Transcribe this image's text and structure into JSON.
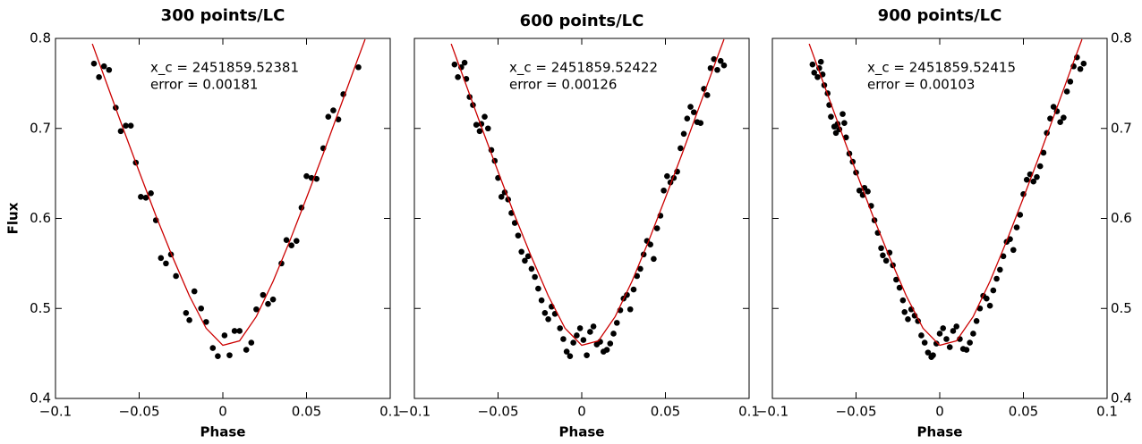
{
  "chart_data": [
    {
      "type": "scatter",
      "title": "300 points/LC",
      "x_label": "Phase",
      "y_label": "Flux",
      "annotations": [
        "x_c = 2451859.52381",
        "error = 0.00181"
      ],
      "xlim": [
        -0.1,
        0.1
      ],
      "ylim": [
        0.4,
        0.8
      ],
      "xticks": [
        {
          "value": -0.1,
          "label": "−0.1"
        },
        {
          "value": -0.05,
          "label": "−0.05"
        },
        0,
        0.05,
        0.1
      ],
      "yticks": [
        0.4,
        0.5,
        0.6,
        0.7,
        0.8
      ],
      "ytick_side": "left",
      "series": [
        {
          "type": "scatter",
          "color": "#000000",
          "x": [
            -0.077,
            -0.074,
            -0.071,
            -0.068,
            -0.064,
            -0.061,
            -0.058,
            -0.055,
            -0.052,
            -0.049,
            -0.046,
            -0.043,
            -0.04,
            -0.037,
            -0.034,
            -0.031,
            -0.028,
            -0.022,
            -0.02,
            -0.017,
            -0.013,
            -0.01,
            -0.006,
            -0.003,
            0.001,
            0.004,
            0.007,
            0.01,
            0.014,
            0.017,
            0.02,
            0.024,
            0.027,
            0.03,
            0.035,
            0.038,
            0.041,
            0.044,
            0.047,
            0.05,
            0.053,
            0.056,
            0.06,
            0.063,
            0.066,
            0.069,
            0.072,
            0.081
          ],
          "values": [
            0.772,
            0.757,
            0.769,
            0.765,
            0.723,
            0.697,
            0.703,
            0.703,
            0.662,
            0.624,
            0.623,
            0.628,
            0.598,
            0.556,
            0.55,
            0.56,
            0.536,
            0.495,
            0.487,
            0.519,
            0.5,
            0.485,
            0.456,
            0.447,
            0.47,
            0.448,
            0.475,
            0.475,
            0.454,
            0.462,
            0.499,
            0.515,
            0.505,
            0.51,
            0.55,
            0.576,
            0.57,
            0.575,
            0.612,
            0.647,
            0.645,
            0.644,
            0.678,
            0.713,
            0.72,
            0.71,
            0.738,
            0.768
          ]
        },
        {
          "type": "line",
          "color": "#cc0000",
          "x": [
            -0.078,
            -0.07,
            -0.06,
            -0.05,
            -0.04,
            -0.03,
            -0.02,
            -0.01,
            0,
            0.01,
            0.02,
            0.03,
            0.04,
            0.05,
            0.06,
            0.07,
            0.08,
            0.085
          ],
          "values": [
            0.794,
            0.753,
            0.702,
            0.652,
            0.603,
            0.557,
            0.514,
            0.478,
            0.459,
            0.464,
            0.491,
            0.53,
            0.575,
            0.623,
            0.672,
            0.723,
            0.774,
            0.799
          ]
        }
      ]
    },
    {
      "type": "scatter",
      "title": "600 points/LC",
      "x_label": "Phase",
      "annotations": [
        "x_c = 2451859.52422",
        "error = 0.00126"
      ],
      "xlim": [
        -0.1,
        0.1
      ],
      "ylim": [
        0.4,
        0.8
      ],
      "xticks": [
        {
          "value": -0.1,
          "label": "−0.1"
        },
        {
          "value": -0.05,
          "label": "−0.05"
        },
        0,
        0.05,
        0.1
      ],
      "yticks": [
        0.4,
        0.5,
        0.6,
        0.7,
        0.8
      ],
      "ytick_side": "none",
      "series": [
        {
          "type": "scatter",
          "color": "#000000",
          "x": [
            -0.076,
            -0.074,
            -0.072,
            -0.07,
            -0.069,
            -0.067,
            -0.065,
            -0.063,
            -0.061,
            -0.06,
            -0.058,
            -0.056,
            -0.054,
            -0.052,
            -0.05,
            -0.048,
            -0.046,
            -0.044,
            -0.042,
            -0.04,
            -0.038,
            -0.036,
            -0.034,
            -0.032,
            -0.03,
            -0.028,
            -0.026,
            -0.024,
            -0.022,
            -0.02,
            -0.018,
            -0.016,
            -0.013,
            -0.011,
            -0.009,
            -0.007,
            -0.005,
            -0.003,
            -0.001,
            0.001,
            0.003,
            0.005,
            0.007,
            0.009,
            0.011,
            0.013,
            0.015,
            0.017,
            0.019,
            0.021,
            0.023,
            0.025,
            0.027,
            0.029,
            0.031,
            0.033,
            0.035,
            0.037,
            0.039,
            0.041,
            0.043,
            0.045,
            0.047,
            0.049,
            0.051,
            0.053,
            0.055,
            0.057,
            0.059,
            0.061,
            0.063,
            0.065,
            0.067,
            0.069,
            0.071,
            0.073,
            0.075,
            0.077,
            0.079,
            0.081,
            0.083,
            0.085
          ],
          "values": [
            0.771,
            0.757,
            0.768,
            0.773,
            0.755,
            0.735,
            0.726,
            0.704,
            0.697,
            0.705,
            0.713,
            0.7,
            0.676,
            0.664,
            0.645,
            0.624,
            0.629,
            0.621,
            0.606,
            0.595,
            0.581,
            0.563,
            0.553,
            0.558,
            0.544,
            0.535,
            0.522,
            0.509,
            0.495,
            0.488,
            0.502,
            0.494,
            0.478,
            0.466,
            0.452,
            0.447,
            0.462,
            0.47,
            0.478,
            0.465,
            0.448,
            0.474,
            0.48,
            0.46,
            0.463,
            0.452,
            0.454,
            0.461,
            0.472,
            0.484,
            0.498,
            0.511,
            0.515,
            0.499,
            0.521,
            0.536,
            0.544,
            0.56,
            0.575,
            0.571,
            0.555,
            0.589,
            0.603,
            0.631,
            0.647,
            0.64,
            0.645,
            0.652,
            0.678,
            0.694,
            0.711,
            0.724,
            0.718,
            0.707,
            0.706,
            0.744,
            0.737,
            0.767,
            0.777,
            0.765,
            0.775,
            0.77
          ]
        },
        {
          "type": "line",
          "color": "#cc0000",
          "x": [
            -0.078,
            -0.07,
            -0.06,
            -0.05,
            -0.04,
            -0.03,
            -0.02,
            -0.01,
            0,
            0.01,
            0.02,
            0.03,
            0.04,
            0.05,
            0.06,
            0.07,
            0.08,
            0.085
          ],
          "values": [
            0.794,
            0.753,
            0.702,
            0.652,
            0.603,
            0.557,
            0.514,
            0.478,
            0.459,
            0.464,
            0.491,
            0.53,
            0.575,
            0.623,
            0.672,
            0.723,
            0.774,
            0.799
          ]
        }
      ]
    },
    {
      "type": "scatter",
      "title": "900 points/LC",
      "x_label": "Phase",
      "annotations": [
        "x_c = 2451859.52415",
        "error = 0.00103"
      ],
      "xlim": [
        -0.1,
        0.1
      ],
      "ylim": [
        0.4,
        0.8
      ],
      "xticks": [
        {
          "value": -0.1,
          "label": "−0.1"
        },
        {
          "value": -0.05,
          "label": "−0.05"
        },
        0,
        0.05,
        0.1
      ],
      "yticks": [
        0.4,
        0.5,
        0.6,
        0.7,
        0.8
      ],
      "ytick_side": "right",
      "series": [
        {
          "type": "scatter",
          "color": "#000000",
          "x": [
            -0.076,
            -0.075,
            -0.073,
            -0.072,
            -0.071,
            -0.07,
            -0.069,
            -0.067,
            -0.066,
            -0.065,
            -0.063,
            -0.062,
            -0.061,
            -0.06,
            -0.058,
            -0.057,
            -0.056,
            -0.054,
            -0.052,
            -0.05,
            -0.048,
            -0.046,
            -0.045,
            -0.043,
            -0.041,
            -0.039,
            -0.037,
            -0.035,
            -0.034,
            -0.032,
            -0.03,
            -0.028,
            -0.026,
            -0.024,
            -0.022,
            -0.021,
            -0.019,
            -0.017,
            -0.015,
            -0.013,
            -0.011,
            -0.009,
            -0.007,
            -0.005,
            -0.004,
            -0.002,
            0.0,
            0.002,
            0.004,
            0.006,
            0.008,
            0.01,
            0.012,
            0.014,
            0.016,
            0.018,
            0.02,
            0.022,
            0.024,
            0.026,
            0.028,
            0.03,
            0.032,
            0.034,
            0.036,
            0.038,
            0.04,
            0.042,
            0.044,
            0.046,
            0.048,
            0.05,
            0.052,
            0.054,
            0.056,
            0.058,
            0.06,
            0.062,
            0.064,
            0.066,
            0.068,
            0.07,
            0.072,
            0.074,
            0.076,
            0.078,
            0.08,
            0.082,
            0.084,
            0.086
          ],
          "values": [
            0.771,
            0.762,
            0.757,
            0.767,
            0.774,
            0.76,
            0.748,
            0.739,
            0.726,
            0.713,
            0.702,
            0.695,
            0.705,
            0.699,
            0.716,
            0.706,
            0.69,
            0.672,
            0.663,
            0.651,
            0.631,
            0.626,
            0.634,
            0.63,
            0.614,
            0.598,
            0.584,
            0.567,
            0.559,
            0.553,
            0.562,
            0.548,
            0.532,
            0.523,
            0.509,
            0.496,
            0.488,
            0.499,
            0.492,
            0.486,
            0.47,
            0.462,
            0.451,
            0.446,
            0.448,
            0.461,
            0.472,
            0.478,
            0.466,
            0.457,
            0.475,
            0.48,
            0.466,
            0.455,
            0.454,
            0.462,
            0.472,
            0.486,
            0.5,
            0.514,
            0.511,
            0.503,
            0.52,
            0.533,
            0.543,
            0.558,
            0.574,
            0.577,
            0.565,
            0.59,
            0.604,
            0.627,
            0.643,
            0.649,
            0.641,
            0.646,
            0.658,
            0.673,
            0.695,
            0.711,
            0.724,
            0.719,
            0.707,
            0.712,
            0.741,
            0.752,
            0.769,
            0.779,
            0.766,
            0.772
          ]
        },
        {
          "type": "line",
          "color": "#cc0000",
          "x": [
            -0.078,
            -0.07,
            -0.06,
            -0.05,
            -0.04,
            -0.03,
            -0.02,
            -0.01,
            0,
            0.01,
            0.02,
            0.03,
            0.04,
            0.05,
            0.06,
            0.07,
            0.08,
            0.085
          ],
          "values": [
            0.794,
            0.753,
            0.702,
            0.652,
            0.603,
            0.557,
            0.514,
            0.478,
            0.459,
            0.464,
            0.491,
            0.53,
            0.575,
            0.623,
            0.672,
            0.723,
            0.774,
            0.799
          ]
        }
      ]
    }
  ]
}
